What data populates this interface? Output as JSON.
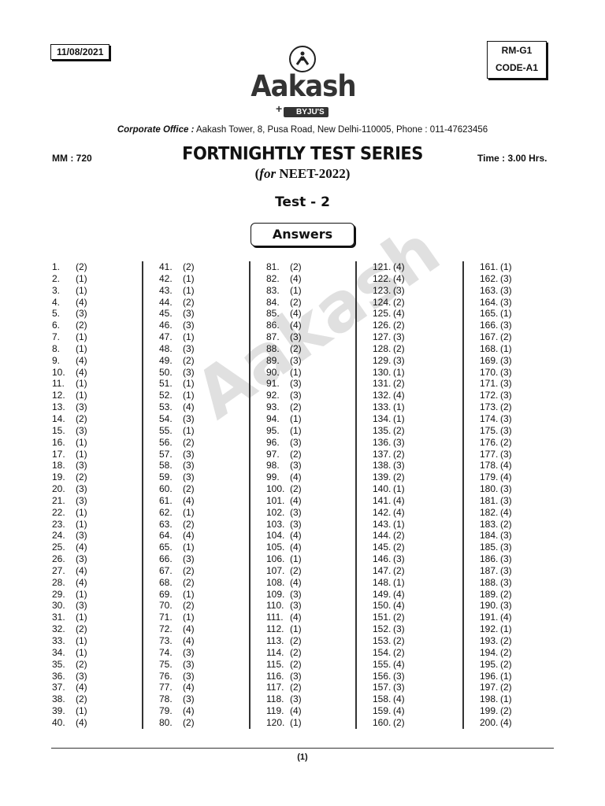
{
  "header": {
    "date": "11/08/2021",
    "code_top": "RM-G1",
    "code_bottom": "CODE-A1",
    "logo_text": "Aakash",
    "logo_sub": "BYJU'S",
    "corporate_label": "Corporate Office :",
    "corporate_address": " Aakash Tower, 8, Pusa Road, New Delhi-110005, Phone : 011-47623456",
    "marks": "MM : 720",
    "time": "Time : 3.00 Hrs.",
    "title": "FORTNIGHTLY TEST SERIES",
    "subtitle_for": "for",
    "subtitle_exam": " NEET-2022)",
    "test": "Test - 2",
    "answers_label": "Answers"
  },
  "watermark": "Aakash",
  "answer_columns": [
    {
      "start": 1,
      "answers": [
        2,
        1,
        1,
        4,
        3,
        2,
        1,
        1,
        4,
        4,
        1,
        1,
        3,
        2,
        3,
        1,
        1,
        3,
        2,
        3,
        3,
        1,
        1,
        3,
        4,
        3,
        4,
        4,
        1,
        3,
        1,
        2,
        1,
        1,
        2,
        3,
        4,
        2,
        1,
        4
      ]
    },
    {
      "start": 41,
      "answers": [
        2,
        1,
        1,
        2,
        3,
        3,
        1,
        3,
        2,
        3,
        1,
        1,
        4,
        3,
        1,
        2,
        3,
        3,
        3,
        2,
        4,
        1,
        2,
        4,
        1,
        3,
        2,
        2,
        1,
        2,
        1,
        4,
        4,
        3,
        3,
        3,
        4,
        3,
        4,
        2
      ]
    },
    {
      "start": 81,
      "answers": [
        2,
        4,
        1,
        2,
        4,
        4,
        3,
        2,
        3,
        1,
        3,
        3,
        2,
        1,
        1,
        3,
        2,
        3,
        4,
        2,
        4,
        3,
        3,
        4,
        4,
        1,
        2,
        4,
        3,
        3,
        4,
        1,
        2,
        2,
        2,
        3,
        2,
        3,
        4,
        1
      ]
    },
    {
      "start": 121,
      "answers": [
        4,
        4,
        3,
        2,
        4,
        2,
        3,
        2,
        3,
        1,
        2,
        4,
        1,
        1,
        2,
        3,
        2,
        3,
        2,
        1,
        4,
        4,
        1,
        2,
        2,
        3,
        2,
        1,
        4,
        4,
        2,
        3,
        2,
        2,
        4,
        3,
        3,
        4,
        4,
        2
      ]
    },
    {
      "start": 161,
      "answers": [
        1,
        3,
        3,
        3,
        1,
        3,
        2,
        1,
        3,
        3,
        3,
        3,
        2,
        3,
        3,
        2,
        3,
        4,
        4,
        3,
        3,
        4,
        2,
        3,
        3,
        3,
        3,
        3,
        2,
        3,
        4,
        1,
        2,
        2,
        2,
        1,
        2,
        1,
        2,
        4
      ]
    }
  ],
  "footer": {
    "page": "(1)"
  }
}
